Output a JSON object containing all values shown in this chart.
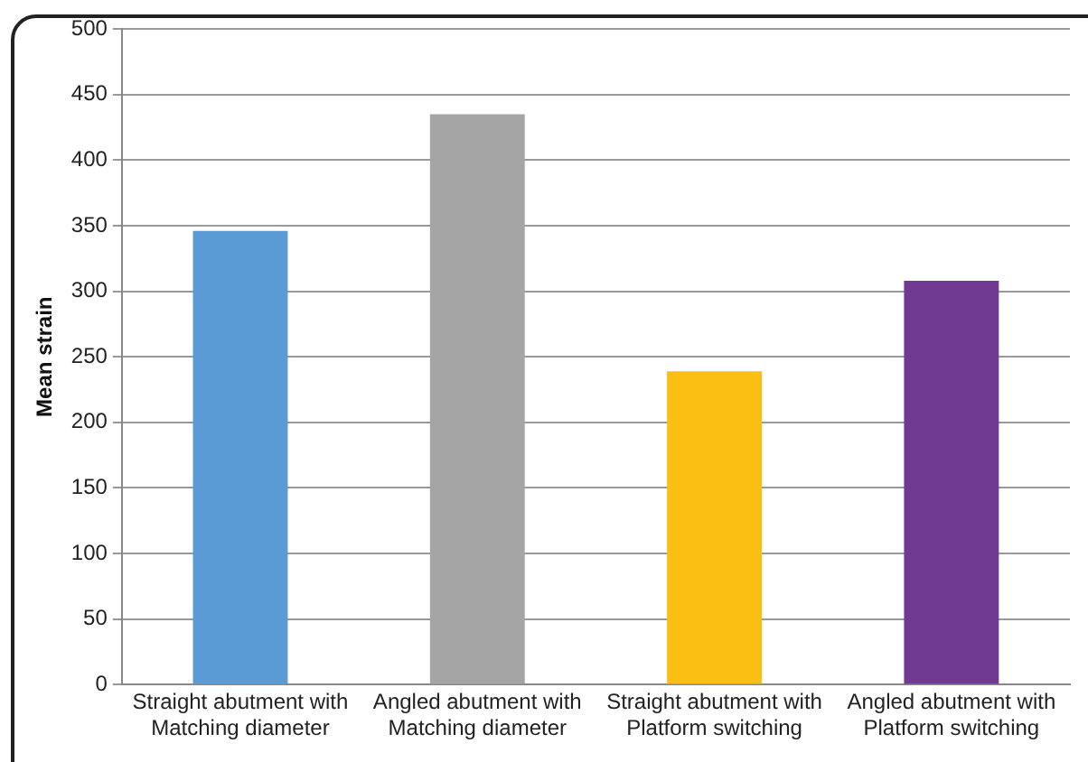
{
  "chart_data": {
    "type": "bar",
    "ylabel": "Mean strain",
    "categories": [
      "Straight abutment with Matching diameter",
      "Angled abutment with Matching diameter",
      "Straight abutment with Platform switching",
      "Angled abutment with Platform switching"
    ],
    "values": [
      346,
      435,
      239,
      308
    ],
    "colors": [
      "#5b9bd5",
      "#a5a5a5",
      "#fbbf13",
      "#703a93"
    ],
    "ylim": [
      0,
      500
    ],
    "yticks": [
      0,
      50,
      100,
      150,
      200,
      250,
      300,
      350,
      400,
      450,
      500
    ],
    "grid": "y",
    "legend": false
  }
}
